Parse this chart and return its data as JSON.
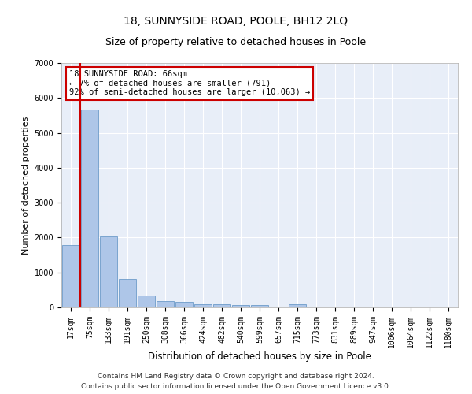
{
  "title": "18, SUNNYSIDE ROAD, POOLE, BH12 2LQ",
  "subtitle": "Size of property relative to detached houses in Poole",
  "xlabel": "Distribution of detached houses by size in Poole",
  "ylabel": "Number of detached properties",
  "categories": [
    "17sqm",
    "75sqm",
    "133sqm",
    "191sqm",
    "250sqm",
    "308sqm",
    "366sqm",
    "424sqm",
    "482sqm",
    "540sqm",
    "599sqm",
    "657sqm",
    "715sqm",
    "773sqm",
    "831sqm",
    "889sqm",
    "947sqm",
    "1006sqm",
    "1064sqm",
    "1122sqm",
    "1180sqm"
  ],
  "values": [
    1780,
    5670,
    2030,
    810,
    340,
    185,
    155,
    100,
    80,
    75,
    65,
    0,
    90,
    0,
    0,
    0,
    0,
    0,
    0,
    0,
    0
  ],
  "bar_color": "#aec6e8",
  "bar_edgecolor": "#5a8fc2",
  "highlight_line_color": "#cc0000",
  "annotation_text": "18 SUNNYSIDE ROAD: 66sqm\n← 7% of detached houses are smaller (791)\n92% of semi-detached houses are larger (10,063) →",
  "annotation_box_color": "#ffffff",
  "annotation_box_edgecolor": "#cc0000",
  "ylim": [
    0,
    7000
  ],
  "yticks": [
    0,
    1000,
    2000,
    3000,
    4000,
    5000,
    6000,
    7000
  ],
  "background_color": "#e8eef8",
  "grid_color": "#ffffff",
  "footer_line1": "Contains HM Land Registry data © Crown copyright and database right 2024.",
  "footer_line2": "Contains public sector information licensed under the Open Government Licence v3.0.",
  "title_fontsize": 10,
  "subtitle_fontsize": 9,
  "xlabel_fontsize": 8.5,
  "ylabel_fontsize": 8,
  "tick_fontsize": 7,
  "footer_fontsize": 6.5,
  "annotation_fontsize": 7.5
}
